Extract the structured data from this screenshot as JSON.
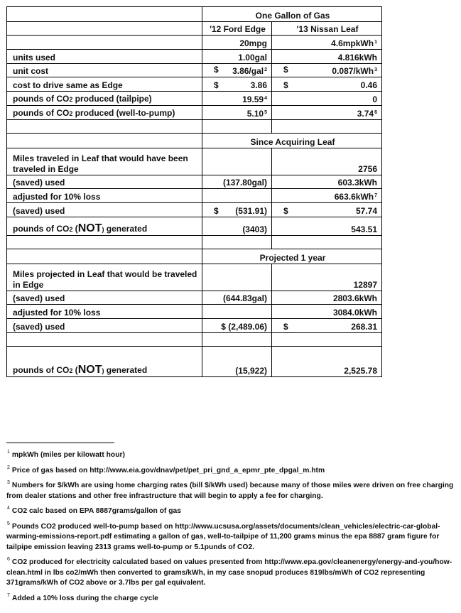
{
  "table": {
    "rows": [
      {
        "kind": "span",
        "h": 21,
        "text": "One Gallon of Gas"
      },
      {
        "kind": "hdr",
        "h": 19,
        "edge": "'12 Ford Edge",
        "leaf": "'13 Nissan Leaf"
      },
      {
        "kind": "row",
        "h": 20,
        "label": [],
        "edge": "20mpg",
        "leaf": "4.6mpkWh",
        "leaf_sup": "1"
      },
      {
        "kind": "row",
        "h": 20,
        "label": [
          {
            "t": "units used"
          }
        ],
        "edge": "1.00gal",
        "leaf": "4.816kWh"
      },
      {
        "kind": "row",
        "h": 19,
        "label": [
          {
            "t": "unit cost"
          }
        ],
        "edge_dollar": "$",
        "edge": "3.86/gal",
        "edge_sup": "2",
        "leaf_dollar": "$",
        "leaf": "0.087/kWh",
        "leaf_sup": "3"
      },
      {
        "kind": "row",
        "h": 20,
        "label": [
          {
            "t": "cost to drive same as Edge"
          }
        ],
        "edge_dollar": "$",
        "edge": "3.86",
        "leaf_dollar": "$",
        "leaf": "0.46"
      },
      {
        "kind": "row",
        "h": 20,
        "label": [
          {
            "t": "pounds of CO"
          },
          {
            "t": "2",
            "c": "sub"
          },
          {
            "t": " produced (tailpipe)"
          }
        ],
        "edge": "19.59",
        "edge_sup": "4",
        "leaf": "0"
      },
      {
        "kind": "row",
        "h": 20,
        "label": [
          {
            "t": "pounds of CO"
          },
          {
            "t": "2",
            "c": "sub"
          },
          {
            "t": " produced (well-to-pump)"
          }
        ],
        "edge": "5.10",
        "edge_sup": "5",
        "leaf": "3.74",
        "leaf_sup": "6"
      },
      {
        "kind": "row",
        "h": 19,
        "label": []
      },
      {
        "kind": "span",
        "h": 21,
        "text": "Since Acquiring Leaf"
      },
      {
        "kind": "row",
        "h": 38,
        "label": [
          {
            "t": "Miles traveled in Leaf that would have been traveled in Edge"
          }
        ],
        "leaf": "2756"
      },
      {
        "kind": "row",
        "h": 19,
        "label": [
          {
            "t": "(saved) used"
          }
        ],
        "edge": "(137.80gal)",
        "leaf": "603.3kWh"
      },
      {
        "kind": "row",
        "h": 20,
        "label": [
          {
            "t": "adjusted for 10% loss"
          }
        ],
        "leaf": "663.6kWh",
        "leaf_sup": "7"
      },
      {
        "kind": "row",
        "h": 20,
        "label": [
          {
            "t": "(saved) used"
          }
        ],
        "edge_dollar": "$",
        "edge": "(531.91)",
        "leaf_dollar": "$",
        "leaf": "57.74"
      },
      {
        "kind": "row",
        "h": 26,
        "label": [
          {
            "t": "pounds of CO"
          },
          {
            "t": "2",
            "c": "sub"
          },
          {
            "t": " ("
          },
          {
            "t": "NOT",
            "c": "big"
          },
          {
            "t": ")",
            "c": "sm"
          },
          {
            "t": " generated"
          }
        ],
        "edge": "(3403)",
        "leaf": "543.51"
      },
      {
        "kind": "row",
        "h": 19,
        "label": []
      },
      {
        "kind": "span",
        "h": 21,
        "text": "Projected 1 year"
      },
      {
        "kind": "row",
        "h": 38,
        "label": [
          {
            "t": "Miles projected in Leaf that would be traveled in Edge"
          }
        ],
        "leaf": "12897"
      },
      {
        "kind": "row",
        "h": 19,
        "label": [
          {
            "t": "(saved) used"
          }
        ],
        "edge": "(644.83gal)",
        "leaf": "2803.6kWh"
      },
      {
        "kind": "row",
        "h": 20,
        "label": [
          {
            "t": "adjusted for 10% loss"
          }
        ],
        "leaf": "3084.0kWh"
      },
      {
        "kind": "row",
        "h": 20,
        "label": [
          {
            "t": "(saved) used"
          }
        ],
        "edge": "$ (2,489.06)",
        "leaf_dollar": "$",
        "leaf": "268.31"
      },
      {
        "kind": "row",
        "h": 19,
        "label": []
      },
      {
        "kind": "row",
        "h": 43,
        "label": [
          {
            "t": "pounds of CO"
          },
          {
            "t": "2",
            "c": "sub"
          },
          {
            "t": " ("
          },
          {
            "t": "NOT",
            "c": "big"
          },
          {
            "t": ")",
            "c": "sm"
          },
          {
            "t": " generated"
          }
        ],
        "edge": "(15,922)",
        "leaf": "2,525.78"
      }
    ]
  },
  "footnotes": [
    {
      "n": "1",
      "text": "mpkWh (miles per kilowatt hour)"
    },
    {
      "n": "2",
      "text": "Price of gas based on http://www.eia.gov/dnav/pet/pet_pri_gnd_a_epmr_pte_dpgal_m.htm"
    },
    {
      "n": "3",
      "text": "Numbers for $/kWh are using home charging rates (bill $/kWh used) because many of those miles were driven on free charging from dealer stations and other free infrastructure that will begin to apply a fee for charging."
    },
    {
      "n": "4",
      "text": "CO2 calc based on EPA 8887grams/gallon of gas"
    },
    {
      "n": "5",
      "text": "Pounds CO2 produced well-to-pump based on http://www.ucsusa.org/assets/documents/clean_vehicles/electric-car-global-warming-emissions-report.pdf estimating a gallon of gas, well-to-tailpipe of 11,200 grams minus the epa 8887 gram figure for tailpipe emission leaving 2313 grams well-to-pump or 5.1punds of CO2."
    },
    {
      "n": "6",
      "text": "CO2 produced for electricity calculated based on values presented from http://www.epa.gov/cleanenergy/energy-and-you/how-clean.html in lbs co2/mWh then converted to grams/kWh, in my case snopud produces 819lbs/mWh of CO2 representing 371grams/kWh of CO2 above or 3.7lbs per gal equivalent."
    },
    {
      "n": "7",
      "text": "Added a 10% loss during the charge cycle"
    }
  ]
}
